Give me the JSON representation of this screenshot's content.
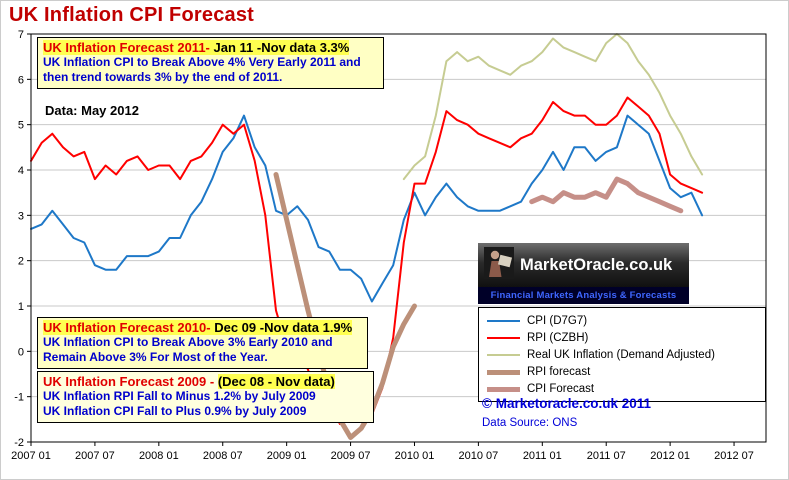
{
  "page": {
    "title": "UK Inflation CPI Forecast"
  },
  "annotations": {
    "forecast2011": {
      "heading_red": "UK Inflation  Forecast  2011-",
      "heading_black": " Jan 11 -Nov data 3.3%",
      "body": "UK Inflation CPI to Break Above 4% Very Early 2011 and then trend towards 3% by the end of 2011."
    },
    "data_note": "Data:   May 2012",
    "forecast2010": {
      "heading_red": "UK Inflation  Forecast  2010-",
      "heading_black": " Dec 09 -Nov data 1.9%",
      "body": "UK Inflation CPI to Break Above 3% Early 2010 and Remain Above 3% For Most of the Year."
    },
    "forecast2009": {
      "heading_red": "UK Inflation  Forecast  2009 - ",
      "heading_black": "(Dec 08 - Nov data)",
      "body_line1": "UK Inflation RPI Fall to  Minus 1.2% by July 2009",
      "body_line2": "UK Inflation CPI Fall to Plus 0.9% by July 2009"
    }
  },
  "logo": {
    "name": "MarketOracle.co.uk",
    "tagline": "Financial Markets Analysis & Forecasts"
  },
  "footer": {
    "copyright": "© Marketoracle.co.uk  2011",
    "source": "Data Source: ONS"
  },
  "chart_data": {
    "type": "line",
    "title": "UK Inflation CPI Forecast",
    "ylim": [
      -2,
      7
    ],
    "y_ticks": [
      7,
      6,
      5,
      4,
      3,
      2,
      1,
      0,
      -1,
      -2
    ],
    "x_tick_labels": [
      "2007 01",
      "2007 07",
      "2008 01",
      "2008 07",
      "2009 01",
      "2009 07",
      "2010 01",
      "2010 07",
      "2011 01",
      "2011 07",
      "2012 01",
      "2012 07"
    ],
    "x_tick_step_months": 6,
    "x_domain_months": 69,
    "grid": "horizontal",
    "legend_position": "right-middle",
    "series": [
      {
        "name": "CPI (D7G7)",
        "color": "#1E78C8",
        "width": 2,
        "start_month": 0,
        "values": [
          2.7,
          2.8,
          3.1,
          2.8,
          2.5,
          2.4,
          1.9,
          1.8,
          1.8,
          2.1,
          2.1,
          2.1,
          2.2,
          2.5,
          2.5,
          3.0,
          3.3,
          3.8,
          4.4,
          4.7,
          5.2,
          4.5,
          4.1,
          3.1,
          3.0,
          3.2,
          2.9,
          2.3,
          2.2,
          1.8,
          1.8,
          1.6,
          1.1,
          1.5,
          1.9,
          2.9,
          3.5,
          3.0,
          3.4,
          3.7,
          3.4,
          3.2,
          3.1,
          3.1,
          3.1,
          3.2,
          3.3,
          3.7,
          4.0,
          4.4,
          4.0,
          4.5,
          4.5,
          4.2,
          4.4,
          4.5,
          5.2,
          5.0,
          4.8,
          4.2,
          3.6,
          3.4,
          3.5,
          3.0
        ]
      },
      {
        "name": "RPI (CZBH)",
        "color": "#FF0000",
        "width": 2,
        "start_month": 0,
        "values": [
          4.2,
          4.6,
          4.8,
          4.5,
          4.3,
          4.4,
          3.8,
          4.1,
          3.9,
          4.2,
          4.3,
          4.0,
          4.1,
          4.1,
          3.8,
          4.2,
          4.3,
          4.6,
          5.0,
          4.8,
          5.0,
          4.2,
          3.0,
          0.9,
          0.1,
          0.0,
          -0.4,
          -1.2,
          -1.1,
          -1.6,
          -1.4,
          -1.3,
          -1.4,
          -0.8,
          0.3,
          2.4,
          3.7,
          3.7,
          4.4,
          5.3,
          5.1,
          5.0,
          4.8,
          4.7,
          4.6,
          4.5,
          4.7,
          4.8,
          5.1,
          5.5,
          5.3,
          5.2,
          5.2,
          5.0,
          5.0,
          5.2,
          5.6,
          5.4,
          5.2,
          4.8,
          3.9,
          3.7,
          3.6,
          3.5
        ]
      },
      {
        "name": "Real UK Inflation  (Demand Adjusted)",
        "color": "#C6CC92",
        "width": 2,
        "start_month": 35,
        "values": [
          3.8,
          4.1,
          4.3,
          5.2,
          6.4,
          6.6,
          6.4,
          6.5,
          6.3,
          6.2,
          6.1,
          6.3,
          6.4,
          6.6,
          6.9,
          6.7,
          6.6,
          6.5,
          6.4,
          6.8,
          7.0,
          6.8,
          6.4,
          6.1,
          5.7,
          5.2,
          4.8,
          4.3,
          3.9
        ]
      },
      {
        "name": "RPI forecast",
        "color": "#BC9079",
        "width": 5,
        "start_month": 23,
        "values": [
          3.9,
          2.9,
          1.9,
          0.9,
          0.0,
          -0.9,
          -1.5,
          -1.9,
          -1.7,
          -1.3,
          -0.7,
          0.1,
          0.6,
          1.0
        ]
      },
      {
        "name": "CPI Forecast",
        "color": "#C68F88",
        "width": 5,
        "start_month": 47,
        "values": [
          3.3,
          3.4,
          3.3,
          3.5,
          3.4,
          3.4,
          3.5,
          3.4,
          3.8,
          3.7,
          3.5,
          3.4,
          3.3,
          3.2,
          3.1
        ]
      }
    ]
  }
}
